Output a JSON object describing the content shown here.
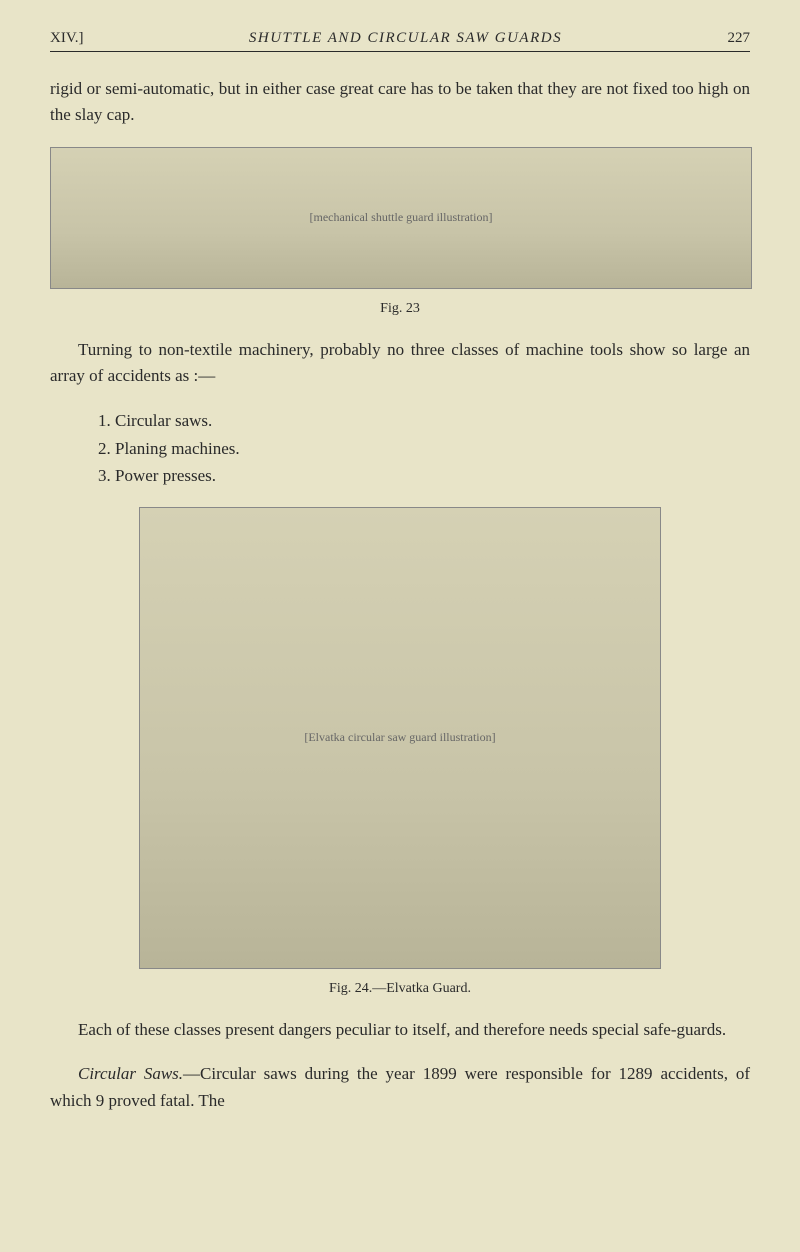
{
  "header": {
    "chapter_mark": "XIV.]",
    "running_title": "SHUTTLE AND CIRCULAR SAW GUARDS",
    "page_number": "227"
  },
  "paragraphs": {
    "p1": "rigid or semi-automatic, but in either case great care has to be taken that they are not fixed too high on the slay cap.",
    "p2": "Turning to non-textile machinery, probably no three classes of machine tools show so large an array of accidents as :—",
    "p3": "Each of these classes present dangers peculiar to itself, and therefore needs special safe-guards.",
    "p4_prefix_italic": "Circular Saws.",
    "p4_rest": "—Circular saws during the year 1899 were responsible for 1289 accidents, of which 9 proved fatal. The"
  },
  "list": {
    "item1": "1. Circular saws.",
    "item2": "2. Planing machines.",
    "item3": "3. Power presses."
  },
  "figures": {
    "fig23": {
      "caption": "Fig. 23",
      "alt": "[mechanical shuttle guard illustration]"
    },
    "fig24": {
      "caption": "Fig. 24.—Elvatka Guard.",
      "alt": "[Elvatka circular saw guard illustration]"
    }
  },
  "colors": {
    "page_bg": "#e8e4c8",
    "text": "#2a2a2a",
    "rule": "#2a2a2a"
  },
  "typography": {
    "body_fontsize_pt": 13,
    "caption_fontsize_pt": 10,
    "header_fontsize_pt": 11,
    "font_family": "Georgia serif"
  }
}
